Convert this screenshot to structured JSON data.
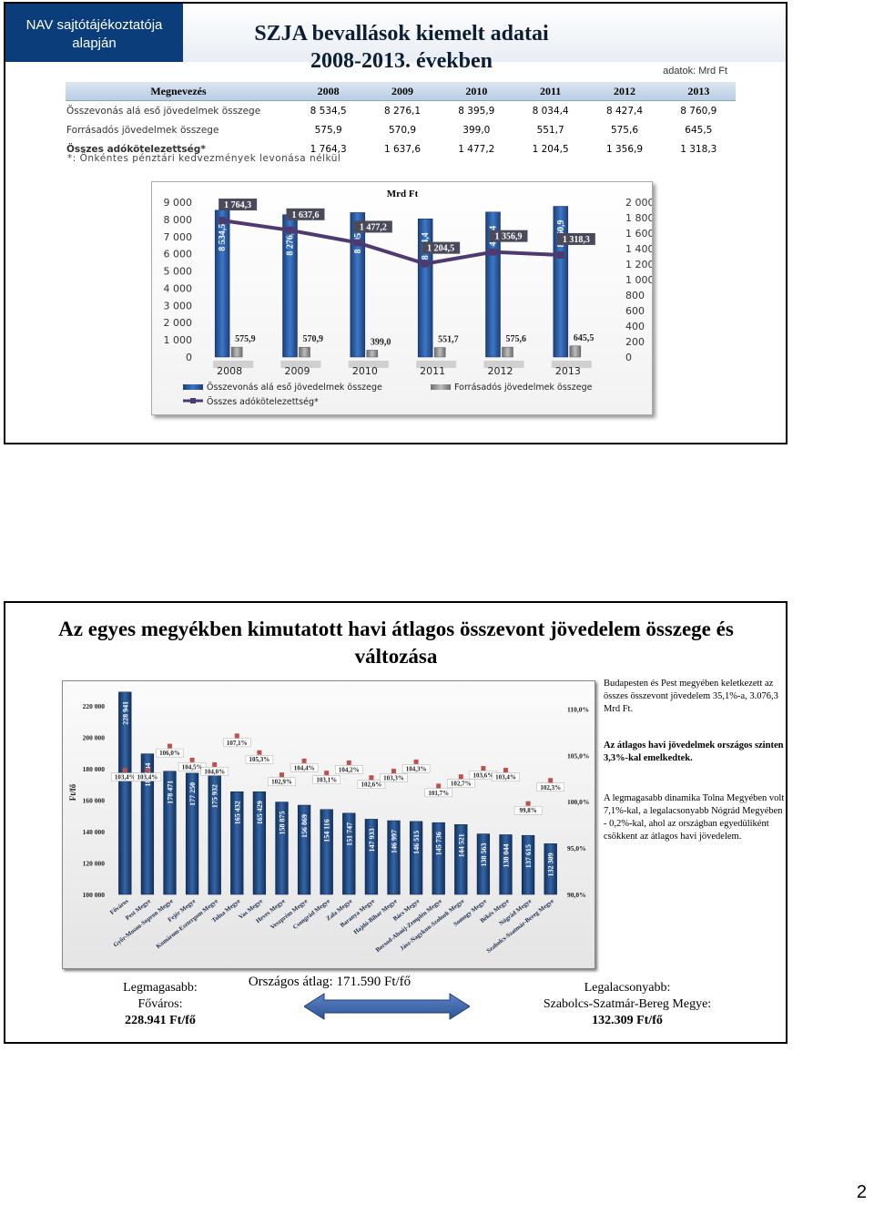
{
  "slide1": {
    "header_left": [
      "NAV sajtótájékoztatója",
      "alapján"
    ],
    "title": [
      "SZJA bevallások kiemelt adatai",
      "2008-2013. években"
    ],
    "unit_note": "adatok: Mrd Ft",
    "table": {
      "headers": [
        "Megnevezés",
        "2008",
        "2009",
        "2010",
        "2011",
        "2012",
        "2013"
      ],
      "rows": [
        {
          "name": "Összevonás alá eső jövedelmek összege",
          "values": [
            "8 534,5",
            "8 276,1",
            "8 395,9",
            "8 034,4",
            "8 427,4",
            "8 760,9"
          ]
        },
        {
          "name": "Forrásadós jövedelmek összege",
          "values": [
            "575,9",
            "570,9",
            "399,0",
            "551,7",
            "575,6",
            "645,5"
          ]
        },
        {
          "name": "Összes adókötelezettség*",
          "values": [
            "1 764,3",
            "1 637,6",
            "1 477,2",
            "1 204,5",
            "1 356,9",
            "1 318,3"
          ]
        }
      ]
    },
    "footnote": "*: Önkéntes pénztári kedvezmények levonása nélkül"
  },
  "chart_data": [
    {
      "type": "bar",
      "title": "Mrd Ft",
      "categories": [
        "2008",
        "2009",
        "2010",
        "2011",
        "2012",
        "2013"
      ],
      "y_left_ticks": [
        "9 000",
        "8 000",
        "7 000",
        "6 000",
        "5 000",
        "4 000",
        "3 000",
        "2 000",
        "1 000",
        "0"
      ],
      "y_right_ticks": [
        "2 000",
        "1 800",
        "1 600",
        "1 400",
        "1 200",
        "1 000",
        "800",
        "600",
        "400",
        "200",
        "0"
      ],
      "ylim_left": [
        0,
        9000
      ],
      "ylim_right": [
        0,
        2000
      ],
      "series": [
        {
          "name": "Összevonás alá eső jövedelmek összege",
          "type": "bar",
          "axis": "left",
          "color": "#2a5ea8",
          "values": [
            8534.5,
            8276.1,
            8395.9,
            8034.4,
            8427.4,
            8760.9
          ],
          "labels": [
            "8 534,5",
            "8 276,1",
            "8 395,9",
            "8 034,4",
            "8 427,4",
            "8 760,9"
          ]
        },
        {
          "name": "Forrásadós jövedelmek összege",
          "type": "bar",
          "axis": "left",
          "color": "#9a9a9a",
          "values": [
            575.9,
            570.9,
            399.0,
            551.7,
            575.6,
            645.5
          ],
          "labels": [
            "575,9",
            "570,9",
            "399,0",
            "551,7",
            "575,6",
            "645,5"
          ]
        },
        {
          "name": "Összes adókötelezettség*",
          "type": "line",
          "axis": "right",
          "color": "#4e3a6e",
          "values": [
            1764.3,
            1637.6,
            1477.2,
            1204.5,
            1356.9,
            1318.3
          ],
          "labels": [
            "1 764,3",
            "1 637,6",
            "1 477,2",
            "1 204,5",
            "1 356,9",
            "1 318,3"
          ]
        }
      ]
    },
    {
      "type": "bar",
      "ylabel": "Ft/fő",
      "ylim_left": [
        100000,
        230000
      ],
      "ylim_right": [
        90,
        112
      ],
      "y_left_ticks": [
        "220 000",
        "200 000",
        "180 000",
        "160 000",
        "140 000",
        "120 000",
        "100 000"
      ],
      "y_left_tick_values": [
        220000,
        200000,
        180000,
        160000,
        140000,
        120000,
        100000
      ],
      "y_right_ticks": [
        "110,0%",
        "105,0%",
        "100,0%",
        "95,0%",
        "90,0%"
      ],
      "y_right_tick_values": [
        110,
        105,
        100,
        95,
        90
      ],
      "categories": [
        "Főváros",
        "Pest Megye",
        "Győr-Moson-Sopron Megye",
        "Fejér Megye",
        "Komárom-Esztergom Megye",
        "Tolna Megye",
        "Vas Megye",
        "Heves Megye",
        "Veszprém Megye",
        "Csongrád Megye",
        "Zala Megye",
        "Baranya Megye",
        "Hajdú-Bihar Megye",
        "Bács Megye",
        "Borsod-Abaúj-Zemplén Megye",
        "Jász-Nagykun-Szolnok Megye",
        "Somogy Megye",
        "Békés Megye",
        "Nógrád Megye",
        "Szabolcs-Szatmár-Bereg Megye"
      ],
      "series": [
        {
          "name": "",
          "type": "bar",
          "color": "#244f86",
          "values": [
            228941,
            189584,
            178471,
            177250,
            175932,
            165432,
            165429,
            158875,
            156869,
            154116,
            151747,
            147933,
            146997,
            146515,
            145736,
            144521,
            138563,
            138044,
            137615,
            132309
          ],
          "labels": [
            "228 941",
            "189 584",
            "178 471",
            "177 250",
            "175 932",
            "165 432",
            "165 429",
            "158 875",
            "156 869",
            "154 116",
            "151 747",
            "147 933",
            "146 997",
            "146 515",
            "145 736",
            "144 521",
            "138 563",
            "138 044",
            "137 615",
            "132 309"
          ]
        },
        {
          "name": "",
          "type": "scatter",
          "color": "#c0504d",
          "values": [
            103.4,
            103.4,
            106.0,
            104.5,
            104.0,
            107.1,
            105.3,
            102.9,
            104.4,
            103.1,
            104.2,
            102.6,
            103.3,
            104.3,
            101.7,
            102.7,
            103.6,
            103.4,
            99.8,
            102.3
          ],
          "labels": [
            "103,4%",
            "103,4%",
            "106,0%",
            "104,5%",
            "104,0%",
            "107,1%",
            "105,3%",
            "102,9%",
            "104,4%",
            "103,1%",
            "104,2%",
            "102,6%",
            "103,3%",
            "104,3%",
            "101,7%",
            "102,7%",
            "103,6%",
            "103,4%",
            "99,8%",
            "102,3%"
          ]
        }
      ]
    }
  ],
  "slide2": {
    "title": "Az egyes megyékben kimutatott havi átlagos összevont jövedelem összege és változása",
    "side_text_1": "Budapesten és Pest megyében keletkezett az összes összevont jövedelem 35,1%-a, 3.076,3 Mrd Ft.",
    "side_text_2": "Az átlagos havi jövedelmek országos szinten 3,3%-kal emelkedtek.",
    "side_text_3": "A legmagasabb dinamika Tolna Megyében volt 7,1%-kal, a legalacsonyabb Nógrád Megyében - 0,2%-kal, ahol az országban egyedüliként csökkent az átlagos havi jövedelem.",
    "highest": [
      "Legmagasabb:",
      "Főváros:",
      "228.941 Ft/fő"
    ],
    "average": "Országos átlag: 171.590 Ft/fő",
    "lowest": [
      "Legalacsonyabb:",
      "Szabolcs-Szatmár-Bereg Megye:",
      "132.309 Ft/fő"
    ]
  },
  "page_number": "2"
}
